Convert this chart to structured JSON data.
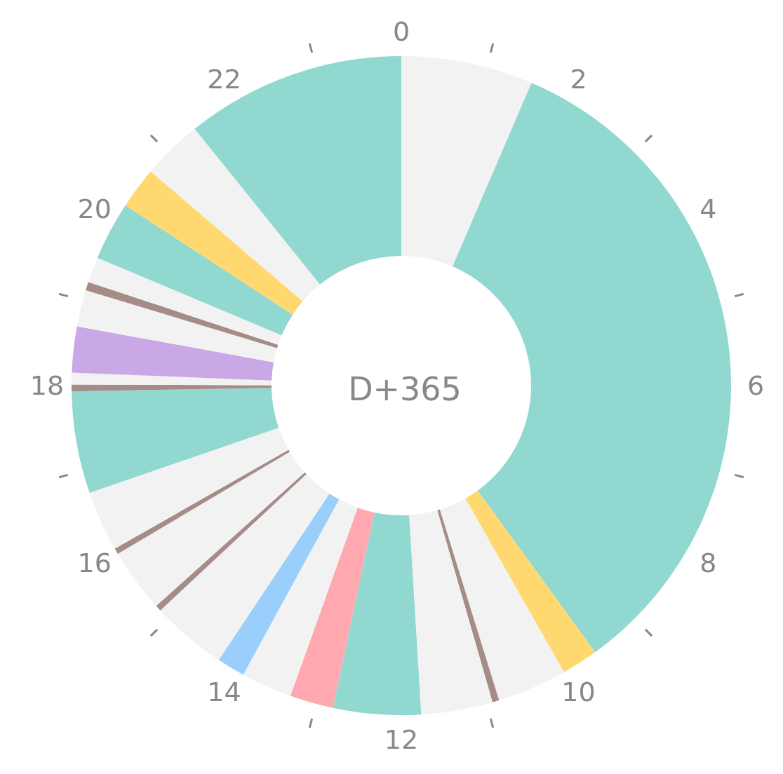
{
  "chart_data": {
    "type": "donut",
    "title": "D+365",
    "categories": [
      null,
      null,
      null,
      null,
      null,
      null,
      null,
      null,
      null,
      null,
      null,
      null,
      null,
      null,
      null,
      null,
      null,
      null,
      null,
      null,
      null,
      null,
      null,
      null,
      null,
      null
    ],
    "values": [
      6.46,
      33.54,
      1.79,
      3.42,
      0.33,
      3.5,
      4.29,
      2.13,
      2.5,
      1.38,
      3.71,
      0.29,
      3.13,
      0.29,
      2.96,
      5.0,
      0.33,
      0.58,
      2.25,
      1.79,
      0.42,
      1.25,
      2.88,
      2.04,
      2.96,
      10.78
    ],
    "colors": [
      "#f2f2f2",
      "#91d8d1",
      "#ffd970",
      "#f2f2f2",
      "#a68c86",
      "#f2f2f2",
      "#91d8d1",
      "#ffa8af",
      "#f2f2f2",
      "#99cffa",
      "#f2f2f2",
      "#a68c86",
      "#f2f2f2",
      "#a68c86",
      "#f2f2f2",
      "#91d8d1",
      "#a68c86",
      "#f2f2f2",
      "#c9a8e5",
      "#f2f2f2",
      "#a68c86",
      "#f2f2f2",
      "#91d8d1",
      "#ffd970",
      "#f2f2f2",
      "#91d8d1"
    ],
    "annotations": [
      "0",
      "2",
      "4",
      "6",
      "8",
      "10",
      "12",
      "14",
      "16",
      "18",
      "20",
      "22"
    ]
  }
}
